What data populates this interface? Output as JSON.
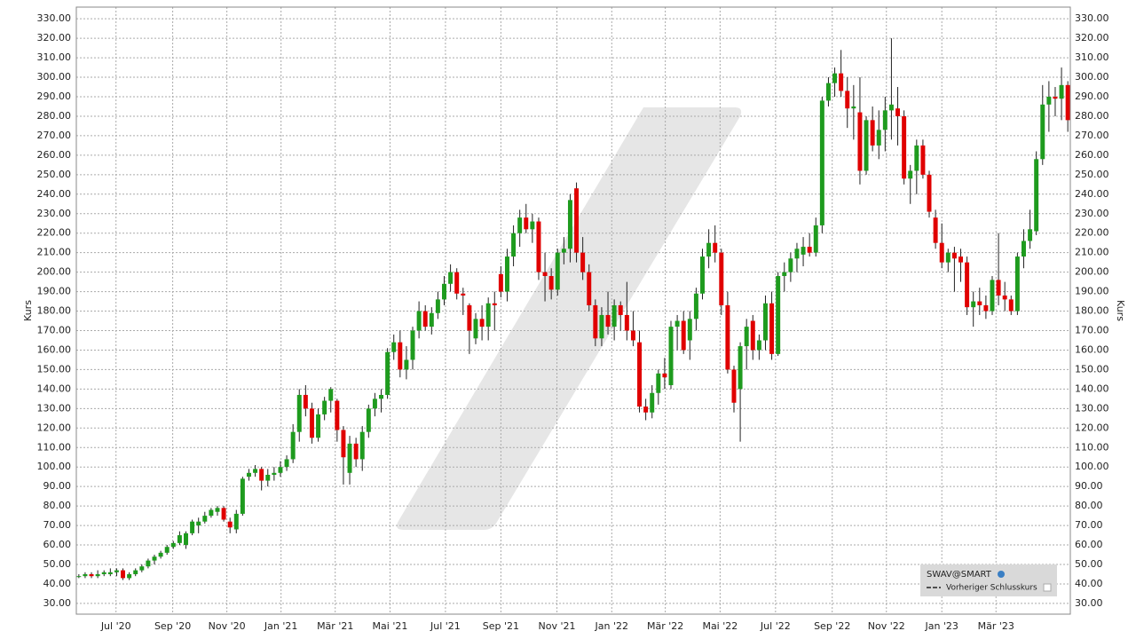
{
  "chart_data": {
    "type": "candlestick",
    "y_label": "Kurs",
    "legend": {
      "symbol": "SWAV@SMART",
      "prev_close": "Vorheriger Schlusskurs"
    },
    "up_color": "#1e9b1e",
    "down_color": "#e00000",
    "grid": true,
    "ylim": [
      24.5,
      336
    ],
    "yticks": [
      {
        "value": 30,
        "label": "30.00"
      },
      {
        "value": 40,
        "label": "40.00"
      },
      {
        "value": 50,
        "label": "50.00"
      },
      {
        "value": 60,
        "label": "60.00"
      },
      {
        "value": 70,
        "label": "70.00"
      },
      {
        "value": 80,
        "label": "80.00"
      },
      {
        "value": 90,
        "label": "90.00"
      },
      {
        "value": 100,
        "label": "100.00"
      },
      {
        "value": 110,
        "label": "110.00"
      },
      {
        "value": 120,
        "label": "120.00"
      },
      {
        "value": 130,
        "label": "130.00"
      },
      {
        "value": 140,
        "label": "140.00"
      },
      {
        "value": 150,
        "label": "150.00"
      },
      {
        "value": 160,
        "label": "160.00"
      },
      {
        "value": 170,
        "label": "170.00"
      },
      {
        "value": 180,
        "label": "180.00"
      },
      {
        "value": 190,
        "label": "190.00"
      },
      {
        "value": 200,
        "label": "200.00"
      },
      {
        "value": 210,
        "label": "210.00"
      },
      {
        "value": 220,
        "label": "220.00"
      },
      {
        "value": 230,
        "label": "230.00"
      },
      {
        "value": 240,
        "label": "240.00"
      },
      {
        "value": 250,
        "label": "250.00"
      },
      {
        "value": 260,
        "label": "260.00"
      },
      {
        "value": 270,
        "label": "270.00"
      },
      {
        "value": 280,
        "label": "280.00"
      },
      {
        "value": 290,
        "label": "290.00"
      },
      {
        "value": 300,
        "label": "300.00"
      },
      {
        "value": 310,
        "label": "310.00"
      },
      {
        "value": 320,
        "label": "320.00"
      },
      {
        "value": 330,
        "label": "330.00"
      }
    ],
    "xlim": [
      -0.4,
      157.4
    ],
    "xticks": [
      {
        "value": 5.9,
        "label": "Jul '20"
      },
      {
        "value": 14.9,
        "label": "Sep '20"
      },
      {
        "value": 23.5,
        "label": "Nov '20"
      },
      {
        "value": 32.1,
        "label": "Jan '21"
      },
      {
        "value": 40.7,
        "label": "Mär '21"
      },
      {
        "value": 49.4,
        "label": "Mai '21"
      },
      {
        "value": 58.2,
        "label": "Jul '21"
      },
      {
        "value": 67.0,
        "label": "Sep '21"
      },
      {
        "value": 75.9,
        "label": "Nov '21"
      },
      {
        "value": 84.6,
        "label": "Jan '22"
      },
      {
        "value": 93.1,
        "label": "Mär '22"
      },
      {
        "value": 101.8,
        "label": "Mai '22"
      },
      {
        "value": 110.6,
        "label": "Jul '22"
      },
      {
        "value": 119.6,
        "label": "Sep '22"
      },
      {
        "value": 128.2,
        "label": "Nov '22"
      },
      {
        "value": 137.0,
        "label": "Jan '23"
      },
      {
        "value": 145.6,
        "label": "Mär '23"
      }
    ],
    "candles": [
      [
        44,
        45,
        43,
        44
      ],
      [
        44,
        46,
        43,
        45
      ],
      [
        45,
        46,
        43,
        44
      ],
      [
        44,
        47,
        43,
        45
      ],
      [
        45,
        47,
        44,
        46
      ],
      [
        45,
        48,
        44,
        46
      ],
      [
        46,
        48,
        44,
        47
      ],
      [
        47,
        48,
        42,
        43
      ],
      [
        43,
        46,
        42,
        45
      ],
      [
        45,
        48,
        44,
        47
      ],
      [
        47,
        50,
        46,
        49
      ],
      [
        49,
        53,
        48,
        52
      ],
      [
        52,
        55,
        50,
        54
      ],
      [
        54,
        57,
        53,
        56
      ],
      [
        56,
        60,
        55,
        59
      ],
      [
        59,
        62,
        58,
        61
      ],
      [
        61,
        67,
        60,
        65
      ],
      [
        60,
        67,
        58,
        66
      ],
      [
        66,
        73,
        65,
        72
      ],
      [
        70,
        74,
        66,
        72
      ],
      [
        72,
        77,
        71,
        75
      ],
      [
        75,
        79,
        74,
        78
      ],
      [
        77,
        80,
        75,
        79
      ],
      [
        79,
        80,
        72,
        73
      ],
      [
        72,
        74,
        66,
        69
      ],
      [
        68,
        78,
        66,
        76
      ],
      [
        76,
        95,
        75,
        94
      ],
      [
        95,
        99,
        93,
        97
      ],
      [
        97,
        101,
        95,
        99
      ],
      [
        99,
        100,
        88,
        93
      ],
      [
        93,
        99,
        90,
        96
      ],
      [
        96,
        100,
        93,
        97
      ],
      [
        97,
        103,
        95,
        100
      ],
      [
        100,
        106,
        98,
        104
      ],
      [
        104,
        122,
        102,
        118
      ],
      [
        118,
        140,
        113,
        137
      ],
      [
        137,
        142,
        126,
        130
      ],
      [
        130,
        133,
        112,
        115
      ],
      [
        115,
        130,
        113,
        127
      ],
      [
        127,
        136,
        124,
        134
      ],
      [
        134,
        141,
        128,
        140
      ],
      [
        134,
        135,
        113,
        119
      ],
      [
        119,
        121,
        91,
        105
      ],
      [
        97,
        116,
        91,
        112
      ],
      [
        112,
        115,
        100,
        104
      ],
      [
        104,
        121,
        98,
        118
      ],
      [
        118,
        132,
        115,
        130
      ],
      [
        130,
        138,
        126,
        135
      ],
      [
        135,
        140,
        128,
        137
      ],
      [
        137,
        161,
        135,
        159
      ],
      [
        159,
        168,
        155,
        164
      ],
      [
        164,
        170,
        146,
        150
      ],
      [
        150,
        162,
        145,
        155
      ],
      [
        155,
        172,
        150,
        170
      ],
      [
        170,
        185,
        166,
        180
      ],
      [
        180,
        183,
        170,
        172
      ],
      [
        172,
        182,
        168,
        179
      ],
      [
        179,
        190,
        176,
        186
      ],
      [
        186,
        198,
        183,
        194
      ],
      [
        194,
        204,
        190,
        200
      ],
      [
        200,
        202,
        186,
        189
      ],
      [
        189,
        192,
        178,
        188
      ],
      [
        183,
        184,
        158,
        170
      ],
      [
        166,
        179,
        163,
        176
      ],
      [
        176,
        183,
        165,
        172
      ],
      [
        172,
        187,
        165,
        184
      ],
      [
        184,
        190,
        170,
        183
      ],
      [
        199,
        203,
        187,
        190
      ],
      [
        190,
        212,
        185,
        208
      ],
      [
        208,
        224,
        203,
        220
      ],
      [
        220,
        232,
        213,
        228
      ],
      [
        228,
        235,
        220,
        222
      ],
      [
        222,
        230,
        215,
        226
      ],
      [
        226,
        228,
        196,
        200
      ],
      [
        200,
        210,
        185,
        198
      ],
      [
        198,
        202,
        186,
        191
      ],
      [
        191,
        212,
        188,
        210
      ],
      [
        210,
        218,
        204,
        212
      ],
      [
        212,
        240,
        205,
        237
      ],
      [
        243,
        246,
        205,
        210
      ],
      [
        210,
        218,
        196,
        200
      ],
      [
        200,
        204,
        180,
        183
      ],
      [
        183,
        186,
        162,
        166
      ],
      [
        166,
        182,
        162,
        178
      ],
      [
        178,
        190,
        168,
        172
      ],
      [
        172,
        186,
        165,
        183
      ],
      [
        183,
        185,
        170,
        178
      ],
      [
        178,
        195,
        165,
        170
      ],
      [
        170,
        180,
        162,
        165
      ],
      [
        164,
        170,
        128,
        131
      ],
      [
        131,
        135,
        124,
        128
      ],
      [
        128,
        142,
        125,
        138
      ],
      [
        138,
        150,
        132,
        148
      ],
      [
        148,
        156,
        140,
        146
      ],
      [
        142,
        175,
        140,
        172
      ],
      [
        172,
        178,
        160,
        175
      ],
      [
        175,
        180,
        158,
        160
      ],
      [
        165,
        180,
        155,
        176
      ],
      [
        176,
        192,
        170,
        189
      ],
      [
        189,
        212,
        186,
        208
      ],
      [
        208,
        222,
        202,
        215
      ],
      [
        215,
        224,
        205,
        210
      ],
      [
        210,
        212,
        178,
        183
      ],
      [
        183,
        190,
        148,
        150
      ],
      [
        150,
        152,
        128,
        133
      ],
      [
        140,
        164,
        113,
        162
      ],
      [
        162,
        176,
        150,
        172
      ],
      [
        175,
        178,
        155,
        160
      ],
      [
        160,
        168,
        155,
        165
      ],
      [
        165,
        188,
        160,
        184
      ],
      [
        184,
        190,
        155,
        158
      ],
      [
        158,
        200,
        157,
        198
      ],
      [
        198,
        205,
        190,
        200
      ],
      [
        200,
        210,
        195,
        207
      ],
      [
        207,
        215,
        200,
        212
      ],
      [
        209,
        218,
        203,
        213
      ],
      [
        213,
        220,
        208,
        210
      ],
      [
        210,
        228,
        208,
        224
      ],
      [
        224,
        290,
        220,
        288
      ],
      [
        288,
        300,
        285,
        297
      ],
      [
        297,
        305,
        290,
        302
      ],
      [
        302,
        314,
        290,
        293
      ],
      [
        293,
        300,
        274,
        284
      ],
      [
        284,
        296,
        268,
        285
      ],
      [
        282,
        300,
        245,
        252
      ],
      [
        252,
        280,
        250,
        278
      ],
      [
        278,
        285,
        262,
        265
      ],
      [
        265,
        283,
        258,
        273
      ],
      [
        273,
        290,
        262,
        283
      ],
      [
        283,
        320,
        268,
        286
      ],
      [
        284,
        295,
        265,
        280
      ],
      [
        280,
        283,
        245,
        248
      ],
      [
        248,
        255,
        235,
        252
      ],
      [
        252,
        268,
        240,
        265
      ],
      [
        265,
        268,
        248,
        250
      ],
      [
        250,
        252,
        228,
        231
      ],
      [
        228,
        232,
        212,
        215
      ],
      [
        215,
        225,
        202,
        205
      ],
      [
        205,
        212,
        200,
        210
      ],
      [
        210,
        213,
        190,
        207
      ],
      [
        208,
        212,
        195,
        205
      ],
      [
        205,
        208,
        178,
        182
      ],
      [
        182,
        190,
        172,
        185
      ],
      [
        185,
        192,
        178,
        183
      ],
      [
        183,
        188,
        176,
        180
      ],
      [
        180,
        198,
        178,
        196
      ],
      [
        196,
        220,
        183,
        188
      ],
      [
        188,
        195,
        180,
        186
      ],
      [
        186,
        188,
        178,
        180
      ],
      [
        180,
        210,
        178,
        208
      ],
      [
        208,
        222,
        202,
        216
      ],
      [
        216,
        232,
        212,
        222
      ],
      [
        221,
        262,
        219,
        258
      ],
      [
        258,
        296,
        255,
        286
      ],
      [
        286,
        298,
        272,
        290
      ],
      [
        290,
        295,
        280,
        289
      ],
      [
        289,
        305,
        278,
        296
      ],
      [
        296,
        298,
        272,
        278
      ]
    ]
  }
}
